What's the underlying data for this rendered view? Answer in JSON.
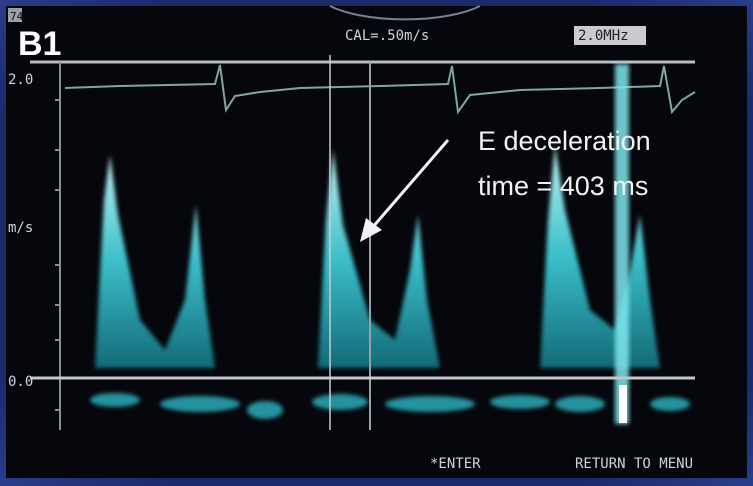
{
  "header": {
    "corner": "74",
    "panel_label": "B1",
    "calibration": "CAL=.50m/s",
    "frequency": "2.0MHz"
  },
  "axis": {
    "top": "2.0",
    "unit": "m/s",
    "zero": "0.0"
  },
  "annotation": {
    "line1": "E deceleration",
    "line2": "time = 403 ms"
  },
  "footer": {
    "enter": "*ENTER",
    "menu": "RETURN TO MENU"
  }
}
